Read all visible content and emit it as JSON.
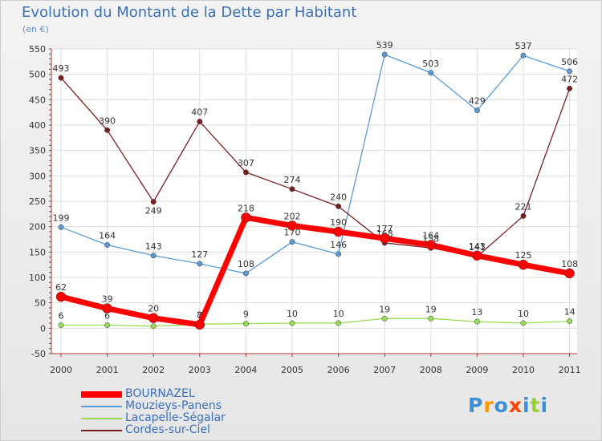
{
  "chart_data": {
    "type": "line",
    "title": "Evolution du Montant de la Dette par Habitant",
    "subtitle": "(en €)",
    "xlabel": "",
    "ylabel": "",
    "x": [
      "2000",
      "2001",
      "2002",
      "2003",
      "2004",
      "2005",
      "2006",
      "2007",
      "2008",
      "2009",
      "2010",
      "2011"
    ],
    "ylim": [
      -50,
      550
    ],
    "yticks": [
      -50,
      0,
      50,
      100,
      150,
      200,
      250,
      300,
      350,
      400,
      450,
      500,
      550
    ],
    "grid": true,
    "legend_position": "bottom-left",
    "series": [
      {
        "name": "BOURNAZEL",
        "color": "#ff0000",
        "values": [
          62,
          39,
          20,
          7,
          218,
          202,
          190,
          177,
          164,
          143,
          125,
          108
        ]
      },
      {
        "name": "Mouzieys-Panens",
        "color": "#5a9bd5",
        "values": [
          199,
          164,
          143,
          127,
          108,
          170,
          146,
          539,
          503,
          429,
          537,
          506
        ]
      },
      {
        "name": "Lacapelle-Ségalar",
        "color": "#99dd55",
        "values": [
          6,
          6,
          4,
          8,
          9,
          10,
          10,
          19,
          19,
          13,
          10,
          14
        ]
      },
      {
        "name": "Cordes-sur-Ciel",
        "color": "#7a1f1f",
        "values": [
          493,
          390,
          249,
          407,
          307,
          274,
          240,
          168,
          158,
          141,
          221,
          472
        ]
      }
    ]
  },
  "logo": {
    "text": "Proxiti",
    "colors": [
      "#3a8fd8",
      "#ff9900",
      "#3a8fd8",
      "#ff4400",
      "#3a8fd8",
      "#99cc33",
      "#3a8fd8"
    ]
  }
}
